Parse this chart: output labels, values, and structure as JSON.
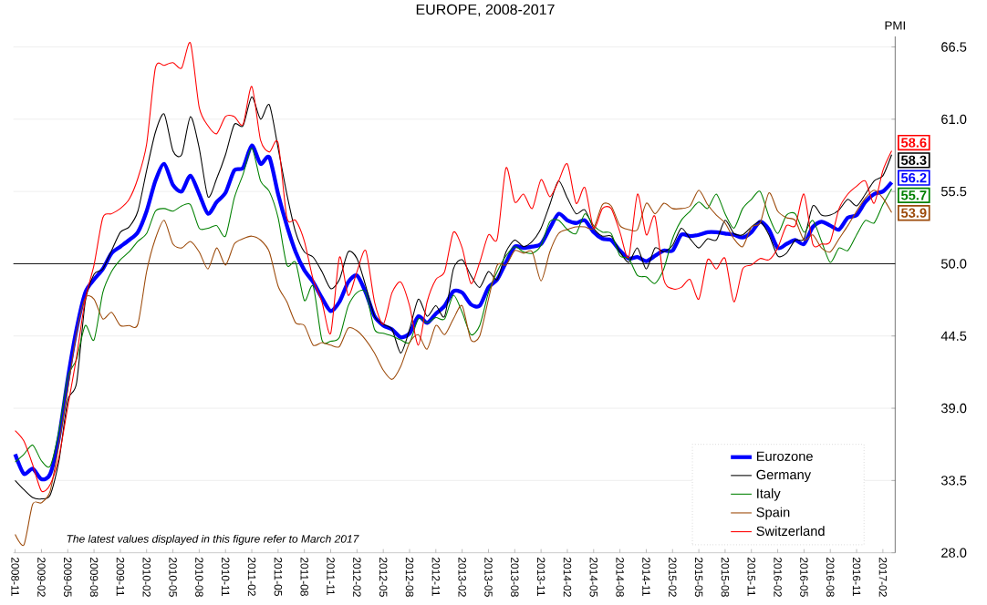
{
  "chart_data": {
    "type": "line",
    "title": "EUROPE, 2008-2017",
    "ylabel": "PMI",
    "categories": [
      "2008-11",
      null,
      null,
      "2009-02",
      null,
      null,
      "2009-05",
      null,
      null,
      "2009-08",
      null,
      null,
      "2009-11",
      null,
      null,
      "2010-02",
      null,
      null,
      "2010-05",
      null,
      null,
      "2010-08",
      null,
      null,
      "2010-11",
      null,
      null,
      "2011-02",
      null,
      null,
      "2011-05",
      null,
      null,
      "2011-08",
      null,
      null,
      "2011-11",
      null,
      null,
      "2012-02",
      null,
      null,
      "2012-05",
      null,
      null,
      "2012-08",
      null,
      null,
      "2012-11",
      null,
      null,
      "2013-02",
      null,
      null,
      "2013-05",
      null,
      null,
      "2013-08",
      null,
      null,
      "2013-11",
      null,
      null,
      "2014-02",
      null,
      null,
      "2014-05",
      null,
      null,
      "2014-08",
      null,
      null,
      "2014-11",
      null,
      null,
      "2015-02",
      null,
      null,
      "2015-05",
      null,
      null,
      "2015-08",
      null,
      null,
      "2015-11",
      null,
      null,
      "2016-02",
      null,
      null,
      "2016-05",
      null,
      null,
      "2016-08",
      null,
      null,
      "2016-11",
      null,
      null,
      "2017-02",
      null
    ],
    "series": [
      {
        "name": "Eurozone",
        "color": "#0000ff",
        "values": [
          35.5,
          34.0,
          34.4,
          33.6,
          34.0,
          36.8,
          41.2,
          45.0,
          47.8,
          48.8,
          49.6,
          50.8,
          51.3,
          51.8,
          52.4,
          54.0,
          56.3,
          57.6,
          56.0,
          55.5,
          56.7,
          55.3,
          53.8,
          54.7,
          55.4,
          57.1,
          57.3,
          59.0,
          57.6,
          58.1,
          55.3,
          52.9,
          50.9,
          49.5,
          48.6,
          47.4,
          46.4,
          47.1,
          48.6,
          49.1,
          47.8,
          46.0,
          45.3,
          45.0,
          44.4,
          44.7,
          46.0,
          45.5,
          46.2,
          46.8,
          47.9,
          47.8,
          46.9,
          46.8,
          48.2,
          48.8,
          50.1,
          51.3,
          51.2,
          51.3,
          51.5,
          52.7,
          53.8,
          53.3,
          53.1,
          53.3,
          52.4,
          51.9,
          51.8,
          51.0,
          50.4,
          50.5,
          50.2,
          50.6,
          51.0,
          51.0,
          52.2,
          52.1,
          52.2,
          52.4,
          52.4,
          52.3,
          52.2,
          52.0,
          52.4,
          53.2,
          52.6,
          51.2,
          51.5,
          51.8,
          51.5,
          52.8,
          53.2,
          52.9,
          52.6,
          53.5,
          53.7,
          54.7,
          55.3,
          55.5,
          56.2
        ],
        "value_labels": [
          null,
          null,
          null,
          null,
          null,
          null,
          null,
          null,
          null,
          null,
          null,
          null,
          null,
          null,
          null,
          null,
          null,
          null,
          null,
          null,
          null,
          null,
          null,
          null,
          null,
          null,
          null,
          null,
          null,
          null,
          null,
          null,
          null,
          null,
          null,
          null,
          null,
          null,
          null,
          null,
          null,
          null,
          null,
          null,
          null,
          null,
          null,
          null,
          null,
          null,
          null,
          null,
          null,
          null,
          null,
          null,
          null,
          null,
          null,
          null,
          null,
          null,
          null,
          null,
          null,
          null,
          null,
          null,
          null,
          null,
          null,
          null,
          null,
          null,
          null,
          null,
          null,
          null,
          null,
          null,
          null,
          null,
          null,
          null,
          null,
          null,
          null,
          null,
          null,
          null,
          null,
          null,
          null,
          null,
          null,
          null,
          null,
          null,
          null,
          null,
          "56.2"
        ]
      },
      {
        "name": "Germany",
        "color": "#000000",
        "values": [
          33.5,
          32.8,
          32.2,
          32.1,
          32.4,
          35.0,
          39.6,
          40.9,
          47.1,
          49.2,
          49.6,
          51.0,
          52.4,
          52.8,
          54.0,
          57.1,
          60.0,
          61.4,
          58.6,
          58.3,
          61.2,
          58.8,
          55.1,
          56.5,
          58.3,
          60.6,
          60.5,
          62.7,
          61.0,
          62.1,
          58.8,
          55.3,
          52.4,
          50.9,
          50.5,
          49.4,
          48.1,
          48.8,
          50.9,
          50.4,
          48.3,
          46.0,
          45.4,
          45.0,
          43.2,
          45.0,
          47.3,
          46.0,
          46.8,
          46.0,
          49.6,
          50.3,
          49.1,
          48.2,
          49.4,
          48.8,
          50.9,
          51.8,
          51.3,
          51.7,
          52.7,
          54.5,
          56.3,
          55.0,
          53.8,
          54.1,
          52.7,
          52.1,
          52.1,
          50.9,
          50.1,
          51.2,
          49.6,
          51.2,
          50.9,
          51.4,
          52.7,
          51.9,
          51.2,
          51.9,
          51.8,
          53.3,
          52.3,
          52.2,
          52.8,
          53.2,
          52.2,
          50.6,
          50.8,
          51.8,
          51.9,
          54.4,
          53.7,
          53.7,
          54.1,
          54.9,
          54.4,
          55.3,
          56.3,
          56.7,
          58.3
        ],
        "value_labels": [
          null,
          null,
          null,
          null,
          null,
          null,
          null,
          null,
          null,
          null,
          null,
          null,
          null,
          null,
          null,
          null,
          null,
          null,
          null,
          null,
          null,
          null,
          null,
          null,
          null,
          null,
          null,
          null,
          null,
          null,
          null,
          null,
          null,
          null,
          null,
          null,
          null,
          null,
          null,
          null,
          null,
          null,
          null,
          null,
          null,
          null,
          null,
          null,
          null,
          null,
          null,
          null,
          null,
          null,
          null,
          null,
          null,
          null,
          null,
          null,
          null,
          null,
          null,
          null,
          null,
          null,
          null,
          null,
          null,
          null,
          null,
          null,
          null,
          null,
          null,
          null,
          null,
          null,
          null,
          null,
          null,
          null,
          null,
          null,
          null,
          null,
          null,
          null,
          null,
          null,
          null,
          null,
          null,
          null,
          null,
          null,
          null,
          null,
          null,
          null,
          "58.3"
        ]
      },
      {
        "name": "Italy",
        "color": "#008000",
        "values": [
          34.9,
          35.5,
          36.2,
          35.0,
          34.6,
          37.3,
          41.4,
          42.7,
          45.3,
          44.2,
          47.8,
          49.4,
          50.3,
          50.9,
          51.7,
          52.3,
          54.0,
          54.2,
          54.0,
          54.4,
          54.5,
          52.7,
          52.7,
          52.9,
          52.1,
          55.0,
          56.8,
          58.8,
          56.3,
          55.5,
          53.5,
          49.9,
          50.1,
          47.2,
          48.3,
          44.2,
          44.1,
          44.4,
          46.8,
          47.8,
          47.8,
          45.0,
          44.7,
          44.5,
          44.2,
          44.0,
          45.8,
          45.5,
          45.9,
          45.8,
          47.6,
          46.3,
          44.6,
          45.3,
          47.8,
          49.4,
          50.6,
          51.3,
          50.9,
          50.8,
          51.4,
          53.2,
          53.3,
          52.6,
          52.3,
          53.8,
          52.9,
          52.4,
          52.3,
          50.6,
          50.4,
          49.1,
          49.0,
          48.5,
          49.6,
          51.9,
          53.3,
          54.0,
          54.7,
          54.2,
          55.3,
          53.8,
          52.7,
          54.2,
          54.9,
          55.5,
          53.6,
          52.3,
          53.7,
          53.8,
          52.4,
          53.3,
          51.7,
          50.1,
          51.2,
          51.0,
          52.2,
          53.3,
          53.1,
          54.5,
          55.7
        ],
        "value_labels": [
          null,
          null,
          null,
          null,
          null,
          null,
          null,
          null,
          null,
          null,
          null,
          null,
          null,
          null,
          null,
          null,
          null,
          null,
          null,
          null,
          null,
          null,
          null,
          null,
          null,
          null,
          null,
          null,
          null,
          null,
          null,
          null,
          null,
          null,
          null,
          null,
          null,
          null,
          null,
          null,
          null,
          null,
          null,
          null,
          null,
          null,
          null,
          null,
          null,
          null,
          null,
          null,
          null,
          null,
          null,
          null,
          null,
          null,
          null,
          null,
          null,
          null,
          null,
          null,
          null,
          null,
          null,
          null,
          null,
          null,
          null,
          null,
          null,
          null,
          null,
          null,
          null,
          null,
          null,
          null,
          null,
          null,
          null,
          null,
          null,
          null,
          null,
          null,
          null,
          null,
          null,
          null,
          null,
          null,
          null,
          null,
          null,
          null,
          null,
          null,
          "55.7"
        ]
      },
      {
        "name": "Spain",
        "color": "#9c4a0a",
        "values": [
          29.4,
          28.6,
          31.7,
          31.8,
          32.7,
          36.3,
          40.4,
          44.7,
          47.4,
          47.3,
          45.8,
          46.3,
          45.3,
          45.3,
          45.4,
          49.4,
          51.9,
          53.3,
          51.5,
          51.2,
          51.7,
          50.9,
          49.6,
          51.2,
          49.9,
          51.5,
          51.9,
          52.1,
          51.8,
          50.9,
          48.3,
          47.1,
          45.5,
          45.3,
          43.8,
          44.0,
          43.8,
          43.7,
          45.1,
          44.9,
          44.2,
          43.2,
          41.9,
          41.2,
          42.2,
          44.0,
          44.6,
          43.5,
          45.3,
          44.6,
          45.8,
          46.8,
          44.2,
          44.5,
          47.3,
          49.9,
          49.9,
          51.0,
          50.8,
          50.9,
          48.7,
          50.9,
          52.3,
          52.6,
          52.8,
          52.8,
          52.7,
          54.5,
          54.4,
          52.9,
          52.6,
          52.6,
          54.6,
          53.8,
          54.6,
          54.2,
          54.2,
          54.4,
          55.6,
          54.5,
          53.7,
          53.1,
          51.9,
          51.3,
          52.8,
          53.1,
          55.4,
          54.0,
          53.5,
          53.3,
          51.8,
          52.2,
          51.2,
          50.9,
          51.9,
          52.9,
          54.0,
          55.0,
          55.6,
          55.0,
          53.9
        ],
        "value_labels": [
          null,
          null,
          null,
          null,
          null,
          null,
          null,
          null,
          null,
          null,
          null,
          null,
          null,
          null,
          null,
          null,
          null,
          null,
          null,
          null,
          null,
          null,
          null,
          null,
          null,
          null,
          null,
          null,
          null,
          null,
          null,
          null,
          null,
          null,
          null,
          null,
          null,
          null,
          null,
          null,
          null,
          null,
          null,
          null,
          null,
          null,
          null,
          null,
          null,
          null,
          null,
          null,
          null,
          null,
          null,
          null,
          null,
          null,
          null,
          null,
          null,
          null,
          null,
          null,
          null,
          null,
          null,
          null,
          null,
          null,
          null,
          null,
          null,
          null,
          null,
          null,
          null,
          null,
          null,
          null,
          null,
          null,
          null,
          null,
          null,
          null,
          null,
          null,
          null,
          null,
          null,
          null,
          null,
          null,
          null,
          null,
          null,
          null,
          null,
          null,
          "53.9"
        ]
      },
      {
        "name": "Switzerland",
        "color": "#ff0000",
        "values": [
          37.3,
          36.5,
          34.7,
          32.7,
          33.2,
          35.3,
          39.1,
          42.9,
          47.3,
          49.9,
          53.5,
          53.8,
          54.2,
          54.9,
          56.5,
          59.1,
          64.9,
          65.1,
          65.3,
          64.9,
          66.8,
          61.9,
          60.5,
          59.9,
          61.2,
          61.2,
          60.6,
          63.5,
          59.4,
          58.5,
          59.2,
          53.5,
          53.3,
          51.7,
          48.8,
          47.1,
          44.7,
          50.5,
          47.6,
          49.4,
          51.0,
          47.1,
          45.4,
          47.8,
          48.6,
          46.8,
          43.8,
          47.1,
          48.8,
          49.4,
          52.4,
          51.2,
          48.5,
          50.1,
          52.2,
          51.9,
          57.3,
          54.7,
          55.3,
          54.2,
          56.4,
          55.1,
          56.3,
          57.6,
          54.6,
          55.8,
          52.7,
          54.2,
          54.2,
          52.4,
          50.5,
          55.3,
          52.2,
          53.6,
          48.8,
          48.1,
          48.2,
          48.8,
          47.3,
          50.3,
          49.6,
          50.4,
          47.1,
          49.6,
          49.9,
          50.4,
          50.3,
          51.2,
          52.9,
          52.9,
          55.3,
          51.5,
          51.5,
          51.7,
          54.2,
          55.3,
          55.9,
          56.3,
          54.6,
          57.1,
          58.6
        ],
        "value_labels": [
          null,
          null,
          null,
          null,
          null,
          null,
          null,
          null,
          null,
          null,
          null,
          null,
          null,
          null,
          null,
          null,
          null,
          null,
          null,
          null,
          null,
          null,
          null,
          null,
          null,
          null,
          null,
          null,
          null,
          null,
          null,
          null,
          null,
          null,
          null,
          null,
          null,
          null,
          null,
          null,
          null,
          null,
          null,
          null,
          null,
          null,
          null,
          null,
          null,
          null,
          null,
          null,
          null,
          null,
          null,
          null,
          null,
          null,
          null,
          null,
          null,
          null,
          null,
          null,
          null,
          null,
          null,
          null,
          null,
          null,
          null,
          null,
          null,
          null,
          null,
          null,
          null,
          null,
          null,
          null,
          null,
          null,
          null,
          null,
          null,
          null,
          null,
          null,
          null,
          null,
          null,
          null,
          null,
          null,
          null,
          null,
          null,
          null,
          null,
          null,
          "58.6"
        ]
      }
    ],
    "ylim": [
      28,
      67.3
    ],
    "yticks": [
      {
        "value": 28,
        "label": "28.0"
      },
      {
        "value": 33.5,
        "label": "33.5"
      },
      {
        "value": 39,
        "label": "39.0"
      },
      {
        "value": 44.5,
        "label": "44.5"
      },
      {
        "value": 50,
        "label": "50.0"
      },
      {
        "value": 55.5,
        "label": "55.5"
      },
      {
        "value": 61,
        "label": "61.0"
      },
      {
        "value": 66.5,
        "label": "66.5"
      }
    ],
    "grid": "y",
    "legend": "bottom right",
    "ref_lines": [
      {
        "axis": "y",
        "value": 50,
        "color": "#000000"
      }
    ],
    "annotations": [
      "*The latest values displayed in this figure refer to March 2017*"
    ]
  }
}
